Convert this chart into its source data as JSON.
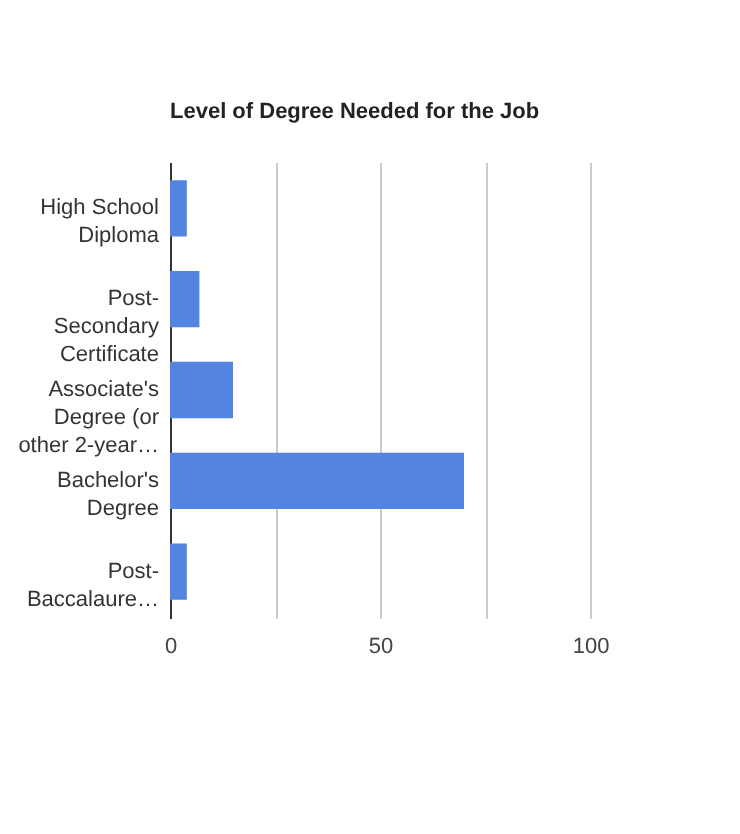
{
  "chart_data": {
    "type": "bar",
    "orientation": "horizontal",
    "title": "Level of Degree Needed for the Job",
    "categories": [
      "High School Diploma",
      "Post-Secondary Certificate",
      "Associate's Degree (or other 2-year…",
      "Bachelor's Degree",
      "Post-Baccalaure…"
    ],
    "values": [
      4,
      7,
      15,
      70,
      4
    ],
    "color": "#5284e0",
    "xlim": [
      0,
      100
    ],
    "xticks": [
      0,
      {
        "value": 25,
        "label": null
      },
      50,
      {
        "value": 75,
        "label": null
      },
      100
    ],
    "grid": "x"
  }
}
